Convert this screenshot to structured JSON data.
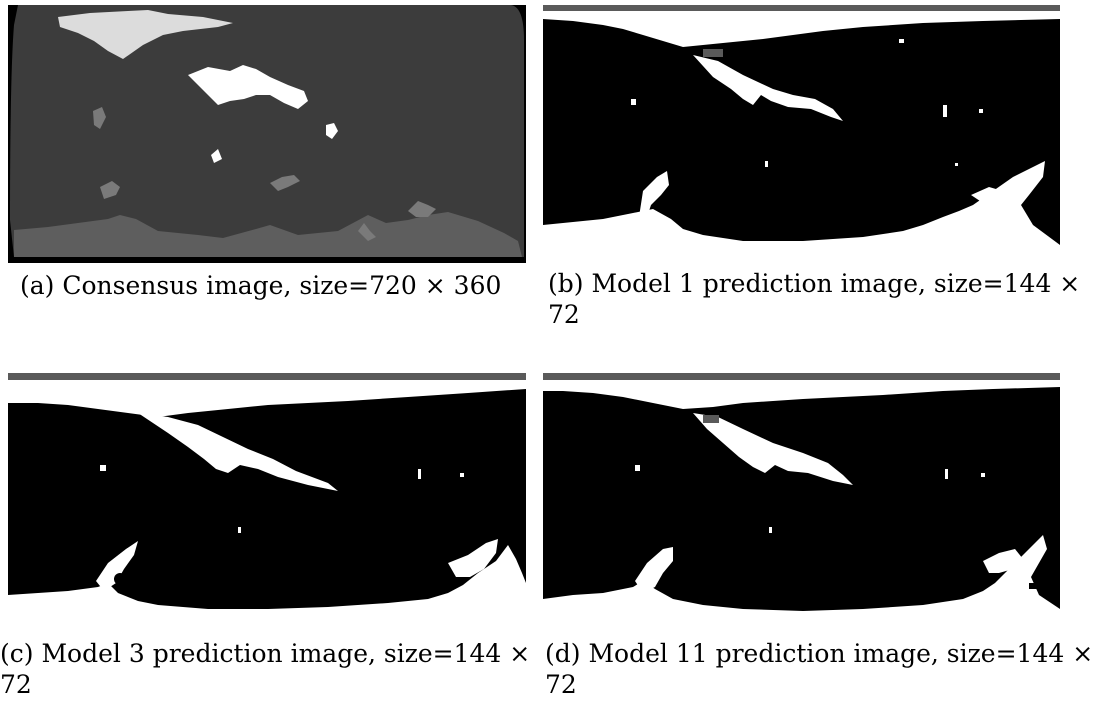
{
  "figure": {
    "panels": [
      {
        "id": "a",
        "caption_line1": "(a) Consensus image, size=720 × 360",
        "caption_line2": ""
      },
      {
        "id": "b",
        "caption_line1": "(b) Model 1 prediction image, size=144 ×",
        "caption_line2": "72"
      },
      {
        "id": "c",
        "caption_line1": "(c) Model 3 prediction image, size=144 ×",
        "caption_line2": "72"
      },
      {
        "id": "d",
        "caption_line1": "(d) Model 11 prediction image, size=144 ×",
        "caption_line2": "72"
      }
    ]
  },
  "colors": {
    "background": "#ffffff",
    "prediction_dark": "#000000",
    "prediction_light": "#ffffff",
    "prediction_gray": "#5a5a5a",
    "consensus_outer": "#000000",
    "consensus_main": "#3c3c3c",
    "consensus_band": "#5e5e5e",
    "consensus_white": "#ffffff",
    "consensus_light": "#dcdcdc",
    "consensus_mid": "#7a7a7a"
  }
}
